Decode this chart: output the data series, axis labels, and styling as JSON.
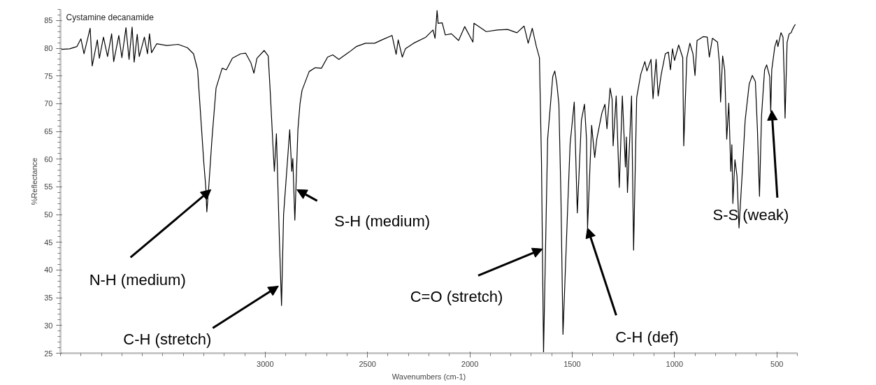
{
  "chart_data": {
    "type": "line",
    "title": "Cystamine decanamide",
    "xlabel": "Wavenumbers (cm-1)",
    "ylabel": "%Reflectance",
    "xlim": [
      4000,
      400
    ],
    "ylim": [
      25,
      87
    ],
    "xticks": [
      3000,
      2500,
      2000,
      1500,
      1000,
      500
    ],
    "yticks": [
      25,
      30,
      35,
      40,
      45,
      50,
      55,
      60,
      65,
      70,
      75,
      80,
      85
    ],
    "grid": false,
    "series": [
      {
        "color": "#000000",
        "x": [
          3995,
          3955,
          3920,
          3900,
          3885,
          3855,
          3845,
          3820,
          3810,
          3790,
          3770,
          3750,
          3740,
          3715,
          3700,
          3680,
          3665,
          3650,
          3640,
          3625,
          3615,
          3590,
          3575,
          3565,
          3555,
          3530,
          3480,
          3425,
          3380,
          3350,
          3330,
          3315,
          3300,
          3290,
          3285,
          3275,
          3260,
          3240,
          3210,
          3190,
          3160,
          3120,
          3095,
          3070,
          3055,
          3040,
          3005,
          2985,
          2975,
          2960,
          2955,
          2945,
          2930,
          2920,
          2910,
          2880,
          2870,
          2865,
          2855,
          2840,
          2830,
          2820,
          2785,
          2755,
          2725,
          2695,
          2670,
          2640,
          2590,
          2555,
          2510,
          2465,
          2430,
          2380,
          2360,
          2350,
          2330,
          2315,
          2275,
          2215,
          2180,
          2170,
          2160,
          2155,
          2135,
          2120,
          2090,
          2055,
          2025,
          1985,
          1980,
          1920,
          1865,
          1815,
          1770,
          1735,
          1715,
          1695,
          1675,
          1660,
          1650,
          1640,
          1620,
          1595,
          1585,
          1575,
          1565,
          1555,
          1545,
          1520,
          1510,
          1490,
          1475,
          1455,
          1440,
          1430,
          1425,
          1405,
          1390,
          1380,
          1355,
          1340,
          1330,
          1315,
          1305,
          1300,
          1285,
          1270,
          1255,
          1240,
          1235,
          1230,
          1210,
          1200,
          1185,
          1165,
          1145,
          1135,
          1115,
          1105,
          1090,
          1080,
          1065,
          1045,
          1030,
          1020,
          1010,
          1000,
          980,
          960,
          955,
          940,
          925,
          910,
          900,
          890,
          860,
          840,
          830,
          815,
          790,
          780,
          775,
          765,
          755,
          745,
          735,
          725,
          720,
          715,
          705,
          695,
          685,
          670,
          655,
          635,
          620,
          605,
          595,
          585,
          575,
          560,
          550,
          535,
          530,
          525,
          510,
          500,
          495,
          480,
          470,
          465,
          460,
          450,
          440,
          430,
          425,
          415,
          410
        ],
        "values": [
          79.8,
          79.9,
          80.3,
          81.7,
          79.0,
          83.6,
          76.8,
          81.5,
          78.2,
          82.0,
          78.5,
          82.6,
          77.6,
          82.3,
          78.3,
          83.7,
          78.0,
          83.8,
          77.5,
          82.5,
          78.5,
          82.0,
          79.0,
          82.6,
          79.2,
          80.8,
          80.5,
          80.7,
          80.1,
          79.0,
          76.1,
          67.8,
          59.5,
          54.9,
          50.5,
          55.3,
          63.6,
          72.8,
          76.4,
          76.1,
          78.2,
          79.0,
          79.1,
          77.4,
          75.5,
          78.2,
          79.6,
          78.6,
          72.0,
          61.1,
          57.8,
          64.6,
          45.0,
          33.6,
          50.0,
          65.3,
          57.8,
          60.1,
          49.0,
          65.3,
          69.9,
          72.4,
          75.8,
          76.5,
          76.4,
          78.4,
          78.8,
          78.0,
          79.3,
          80.3,
          80.9,
          80.9,
          81.5,
          82.3,
          78.9,
          81.5,
          78.4,
          79.9,
          80.9,
          82.0,
          83.3,
          81.8,
          86.8,
          84.5,
          84.6,
          82.4,
          82.6,
          81.4,
          83.9,
          81.1,
          84.5,
          83.0,
          83.3,
          83.4,
          82.8,
          84.0,
          80.9,
          83.6,
          80.3,
          78.3,
          59.5,
          25.0,
          63.6,
          74.9,
          75.9,
          73.6,
          69.9,
          53.3,
          28.4,
          53.3,
          62.8,
          70.3,
          50.3,
          67.0,
          69.9,
          63.6,
          47.6,
          66.1,
          60.3,
          63.6,
          68.3,
          69.9,
          65.5,
          72.8,
          70.8,
          62.4,
          71.4,
          54.9,
          71.4,
          58.6,
          64.0,
          54.0,
          71.4,
          43.6,
          71.1,
          75.3,
          77.6,
          75.9,
          78.0,
          70.9,
          78.0,
          71.4,
          75.3,
          79.0,
          79.3,
          76.1,
          79.9,
          77.8,
          80.6,
          78.3,
          62.4,
          78.3,
          80.9,
          79.0,
          75.1,
          81.4,
          82.1,
          82.0,
          78.4,
          81.8,
          81.1,
          77.0,
          70.3,
          78.6,
          76.1,
          63.6,
          70.1,
          57.8,
          62.6,
          52.0,
          59.9,
          57.0,
          47.6,
          57.0,
          67.0,
          73.6,
          75.1,
          74.0,
          65.3,
          53.3,
          67.8,
          76.1,
          77.0,
          74.9,
          68.6,
          76.1,
          80.3,
          81.5,
          80.3,
          82.8,
          82.0,
          75.8,
          67.4,
          81.1,
          82.6,
          82.8,
          83.3,
          84.0,
          84.3
        ]
      }
    ],
    "annotations": [
      {
        "text": "N-H (medium)",
        "x": 3265,
        "y": 54.5
      },
      {
        "text": "C-H (stretch)",
        "x": 2935,
        "y": 37.1
      },
      {
        "text": "S-H (medium)",
        "x": 2845,
        "y": 54.5
      },
      {
        "text": "C=O (stretch)",
        "x": 1645,
        "y": 43.8
      },
      {
        "text": "C-H (def)",
        "x": 1425,
        "y": 47.6
      },
      {
        "text": "S-S (weak)",
        "x": 525,
        "y": 68.8
      }
    ]
  }
}
